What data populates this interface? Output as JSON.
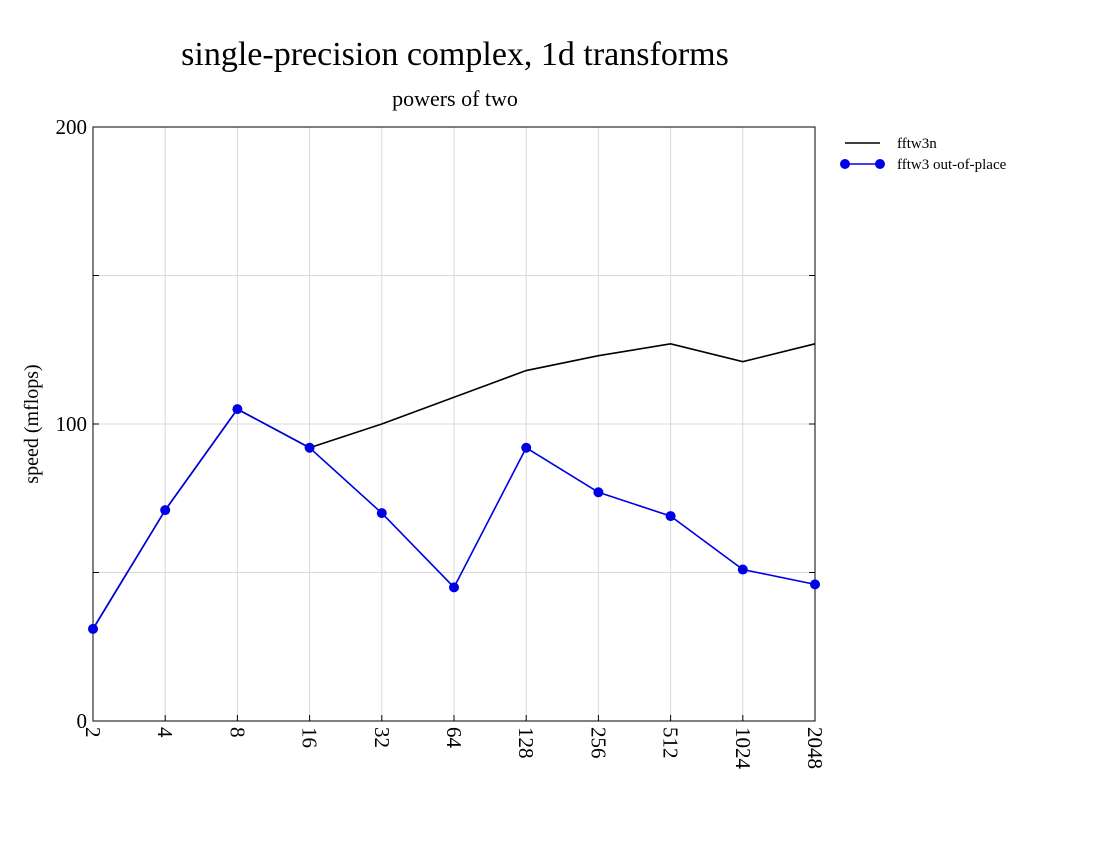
{
  "chart_data": {
    "type": "line",
    "title": "single-precision complex, 1d transforms",
    "subtitle": "powers of two",
    "xlabel": "",
    "ylabel": "speed (mflops)",
    "x_scale": "log2",
    "categories": [
      "2",
      "4",
      "8",
      "16",
      "32",
      "64",
      "128",
      "256",
      "512",
      "1024",
      "2048"
    ],
    "ylim": [
      0,
      200
    ],
    "y_ticks": [
      0,
      100,
      200
    ],
    "grid": true,
    "legend_position": "right-outside",
    "series": [
      {
        "name": "fftw3n",
        "color": "#000000",
        "marker": "none",
        "values": [
          31,
          71,
          105,
          92,
          100,
          109,
          118,
          123,
          127,
          121,
          127
        ]
      },
      {
        "name": "fftw3 out-of-place",
        "color": "#0000e6",
        "marker": "circle",
        "values": [
          31,
          71,
          105,
          92,
          70,
          45,
          92,
          77,
          69,
          51,
          46
        ]
      }
    ]
  }
}
